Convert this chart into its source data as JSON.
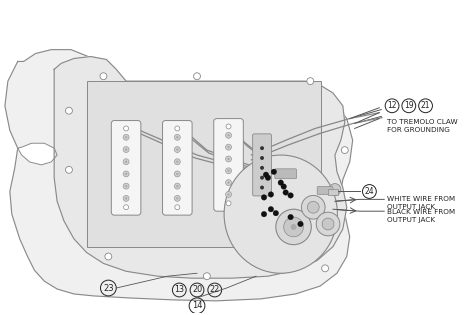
{
  "bg_color": "#ffffff",
  "body_fill": "#f0f0f0",
  "pickguard_fill": "#e8e8e8",
  "cavity_fill": "#e0e0e0",
  "pickup_fill": "#f5f5f5",
  "control_fill": "#e4e4e4",
  "wire_color": "#888888",
  "dark_wire": "#555555",
  "black_fill": "#111111",
  "stroke": "#888888",
  "dark_stroke": "#555555",
  "text_color": "#222222",
  "labels": {
    "tremolo": "TO TREMOLO CLAW\nFOR GROUNDING",
    "white_wire": "WHITE WIRE FROM\nOUTPUT JACK",
    "black_wire": "BLACK WIRE FROM\nOUTPUT JACK"
  },
  "circled_nums_top": [
    "12",
    "19",
    "21"
  ],
  "circled_nums_bottom": [
    "23",
    "13",
    "20",
    "22"
  ],
  "circled_num_14": "14",
  "circled_num_24": "24"
}
